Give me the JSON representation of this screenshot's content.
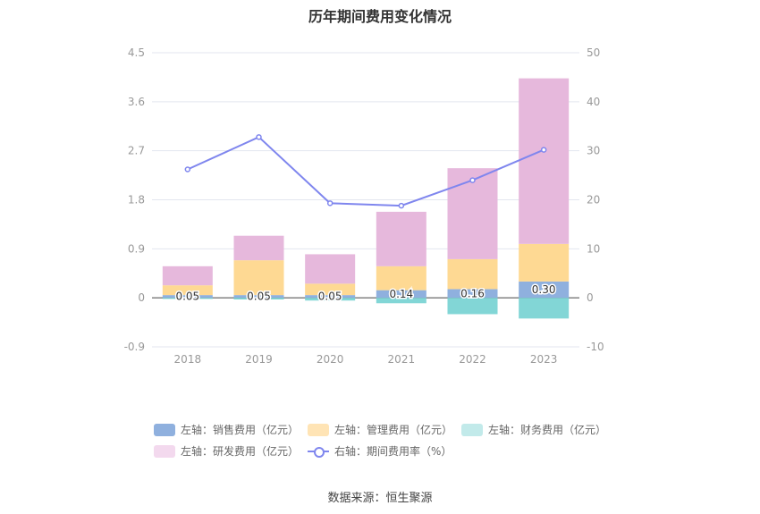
{
  "chart_data": {
    "type": "bar",
    "title": "历年期间费用变化情况",
    "categories": [
      "2018",
      "2019",
      "2020",
      "2021",
      "2022",
      "2023"
    ],
    "y_left": {
      "ticks": [
        "-0.9",
        "0",
        "0.9",
        "1.8",
        "2.7",
        "3.6",
        "4.5"
      ],
      "range": [
        -0.9,
        4.5
      ]
    },
    "y_right": {
      "ticks": [
        "-10",
        "0",
        "10",
        "20",
        "30",
        "40",
        "50"
      ],
      "range": [
        -10,
        50
      ]
    },
    "series": [
      {
        "name": "左轴：销售费用（亿元）",
        "axis": "left",
        "stacked": true,
        "color": "#8fb0de",
        "values": [
          0.05,
          0.05,
          0.05,
          0.14,
          0.16,
          0.3
        ],
        "labels": [
          "0.05",
          "0.05",
          "0.05",
          "0.14",
          "0.16",
          "0.30"
        ]
      },
      {
        "name": "左轴：管理费用（亿元）",
        "axis": "left",
        "stacked": true,
        "color": "#fed993",
        "values": [
          0.18,
          0.64,
          0.21,
          0.44,
          0.55,
          0.69
        ]
      },
      {
        "name": "左轴：财务费用（亿元）",
        "axis": "left",
        "stacked": true,
        "color": "#82d6d6",
        "values": [
          -0.02,
          -0.03,
          -0.05,
          -0.1,
          -0.3,
          -0.38
        ]
      },
      {
        "name": "左轴：研发费用（亿元）",
        "axis": "left",
        "stacked": true,
        "color": "#e6b8dc",
        "values": [
          0.35,
          0.45,
          0.54,
          1.0,
          1.67,
          3.04
        ]
      },
      {
        "name": "右轴：期间费用率（%）",
        "axis": "right",
        "type": "line",
        "color": "#7f86ee",
        "values": [
          26.2,
          32.8,
          19.3,
          18.8,
          24.0,
          30.2
        ]
      }
    ],
    "legend_position": "bottom",
    "grid": true
  },
  "legend": [
    {
      "label": "左轴：销售费用（亿元）",
      "color": "#8fb0de"
    },
    {
      "label": "左轴：管理费用（亿元）",
      "color": "#ffe4b5"
    },
    {
      "label": "左轴：财务费用（亿元）",
      "color": "#c2eaea"
    },
    {
      "label": "左轴：研发费用（亿元）",
      "color": "#f3d9ee"
    },
    {
      "label": "右轴：期间费用率（%）",
      "color": "#7f86ee"
    }
  ],
  "source": "数据来源：恒生聚源"
}
